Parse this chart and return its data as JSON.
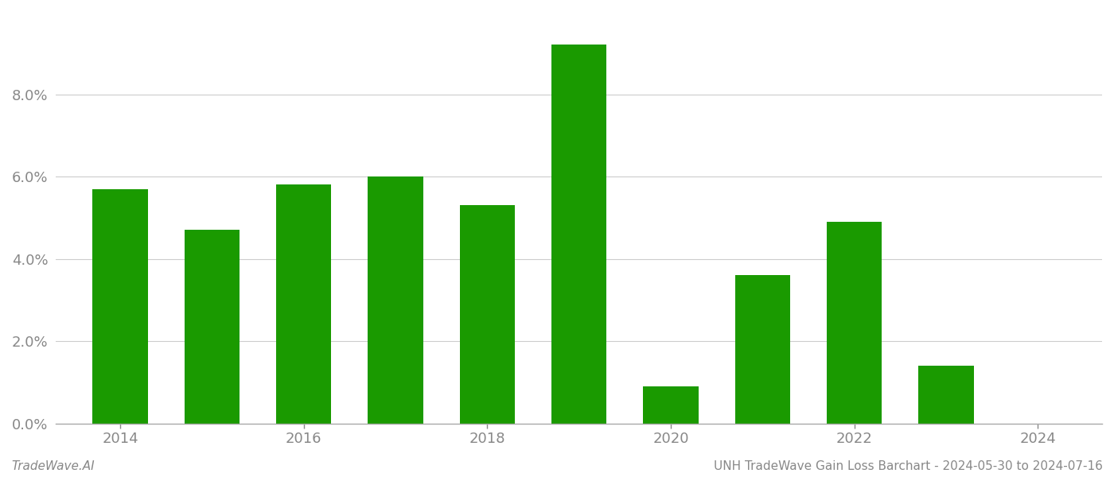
{
  "years": [
    2014,
    2015,
    2016,
    2017,
    2018,
    2019,
    2020,
    2021,
    2022,
    2023
  ],
  "values": [
    0.057,
    0.047,
    0.058,
    0.06,
    0.053,
    0.092,
    0.009,
    0.036,
    0.049,
    0.014
  ],
  "bar_color": "#1a9a00",
  "background_color": "#ffffff",
  "grid_color": "#cccccc",
  "axis_color": "#aaaaaa",
  "tick_color": "#888888",
  "ylim": [
    0,
    0.1
  ],
  "yticks": [
    0.0,
    0.02,
    0.04,
    0.06,
    0.08
  ],
  "xtick_years": [
    2014,
    2016,
    2018,
    2020,
    2022,
    2024
  ],
  "xlim_min": 2013.3,
  "xlim_max": 2024.7,
  "footer_left": "TradeWave.AI",
  "footer_right": "UNH TradeWave Gain Loss Barchart - 2024-05-30 to 2024-07-16",
  "bar_width": 0.6
}
